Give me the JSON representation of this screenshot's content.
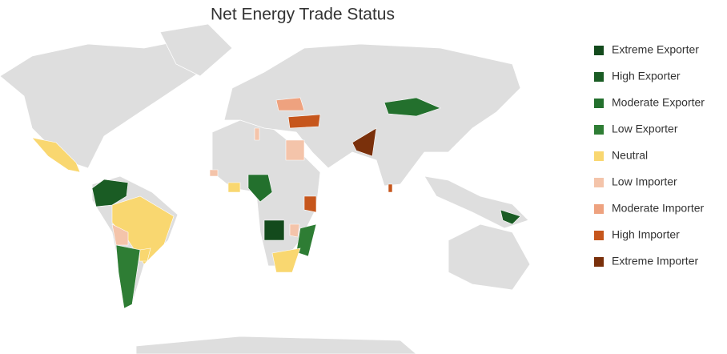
{
  "map": {
    "title": "Net Energy Trade Status",
    "legend": [
      {
        "label": "Extreme Exporter",
        "color": "#134a1c"
      },
      {
        "label": "High Exporter",
        "color": "#1a5c24"
      },
      {
        "label": "Moderate Exporter",
        "color": "#23702d"
      },
      {
        "label": "Low Exporter",
        "color": "#2e7d34"
      },
      {
        "label": "Neutral",
        "color": "#f9d770"
      },
      {
        "label": "Low Importer",
        "color": "#f4c4aa"
      },
      {
        "label": "Moderate Importer",
        "color": "#eea27f"
      },
      {
        "label": "High Importer",
        "color": "#c6561c"
      },
      {
        "label": "Extreme Importer",
        "color": "#7a300b"
      }
    ]
  }
}
